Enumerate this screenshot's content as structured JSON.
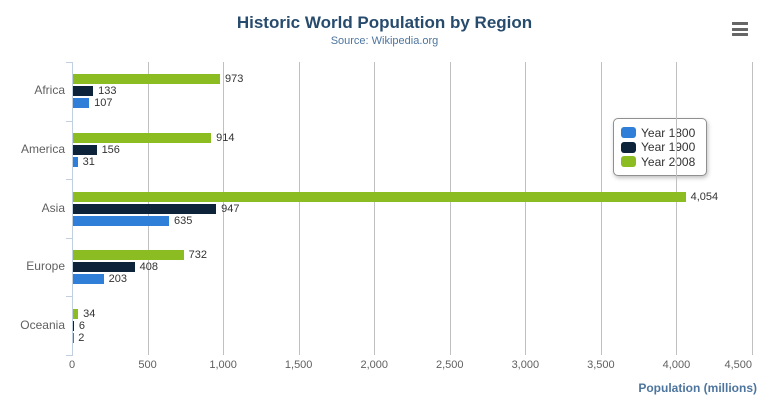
{
  "header": {
    "title": "Historic World Population by Region",
    "subtitle": "Source: Wikipedia.org",
    "context_menu_icon": "hamburger-menu"
  },
  "chart_data": {
    "type": "bar",
    "orientation": "horizontal",
    "title": "Historic World Population by Region",
    "subtitle": "Source: Wikipedia.org",
    "categories": [
      "Africa",
      "America",
      "Asia",
      "Europe",
      "Oceania"
    ],
    "series": [
      {
        "name": "Year 1800",
        "color": "#2f7ed8",
        "values": [
          107,
          31,
          635,
          203,
          2
        ]
      },
      {
        "name": "Year 1900",
        "color": "#0d233a",
        "values": [
          133,
          156,
          947,
          408,
          6
        ]
      },
      {
        "name": "Year 2008",
        "color": "#8bbc21",
        "values": [
          973,
          914,
          4054,
          732,
          34
        ]
      }
    ],
    "bar_order_top_to_bottom": [
      "Year 2008",
      "Year 1900",
      "Year 1800"
    ],
    "xlabel": "Population (millions)",
    "ylabel": "",
    "axis_min": 0,
    "axis_max": 4500,
    "ticks": [
      0,
      500,
      1000,
      1500,
      2000,
      2500,
      3000,
      3500,
      4000,
      4500
    ],
    "grid": true,
    "legend_position": "right-middle",
    "data_labels": true
  },
  "colors": {
    "title": "#274b6d",
    "subtitle": "#4d759e",
    "axis_labels": "#606060",
    "data_labels": "#333333",
    "gridline": "#C0C0C0",
    "axis_line": "#C0D0E0",
    "legend_border": "#909090",
    "menu_icon": "#666666",
    "background": "#ffffff"
  }
}
